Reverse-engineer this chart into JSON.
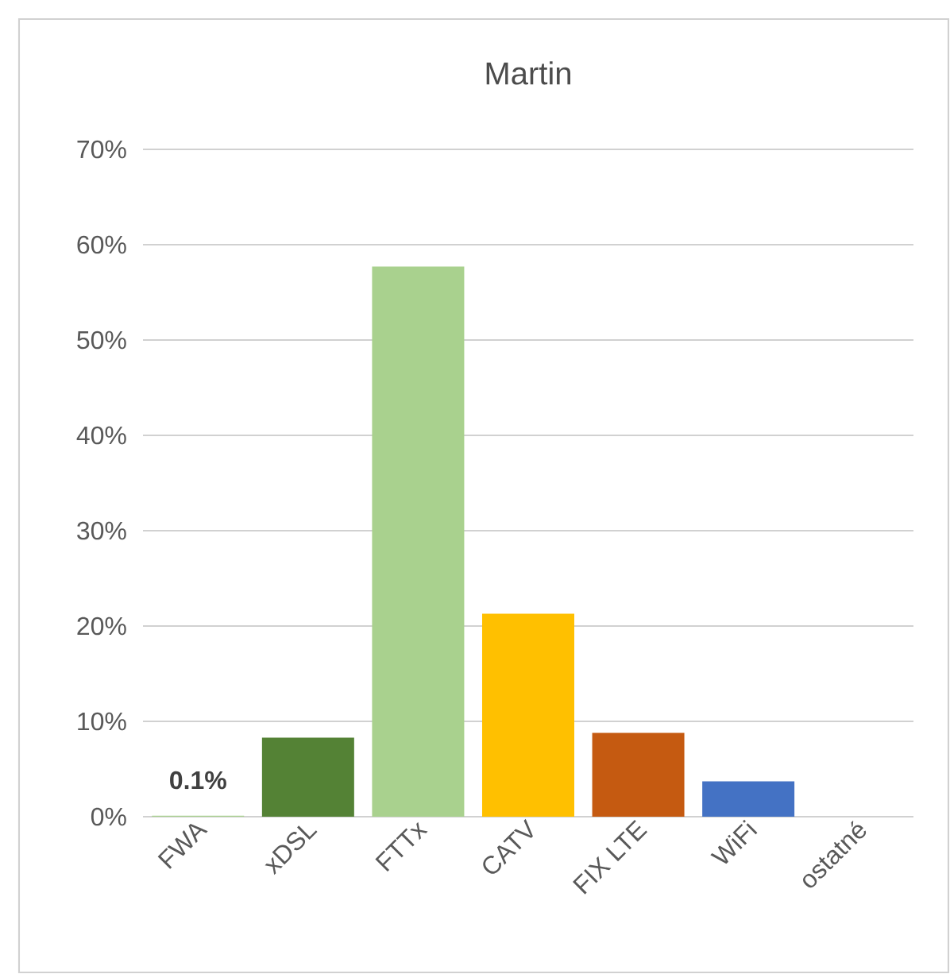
{
  "chart_data": {
    "type": "bar",
    "title": "Martin",
    "categories": [
      "FWA",
      "xDSL",
      "FTTx",
      "CATV",
      "FIX LTE",
      "WiFi",
      "ostatné"
    ],
    "values": [
      0.1,
      8.3,
      57.7,
      21.3,
      8.8,
      3.7,
      0
    ],
    "colors": [
      "#a9d18e",
      "#548235",
      "#a9d18e",
      "#ffc000",
      "#c55a11",
      "#4472c4",
      "#7f7f7f"
    ],
    "value_labels": [
      "0.1%",
      null,
      null,
      null,
      null,
      null,
      null
    ],
    "ylim": [
      0,
      70
    ],
    "yticks": [
      {
        "value": 0,
        "label": "0%"
      },
      {
        "value": 10,
        "label": "10%"
      },
      {
        "value": 20,
        "label": "20%"
      },
      {
        "value": 30,
        "label": "30%"
      },
      {
        "value": 40,
        "label": "40%"
      },
      {
        "value": 50,
        "label": "50%"
      },
      {
        "value": 60,
        "label": "60%"
      },
      {
        "value": 70,
        "label": "70%"
      }
    ],
    "grid": "y"
  }
}
